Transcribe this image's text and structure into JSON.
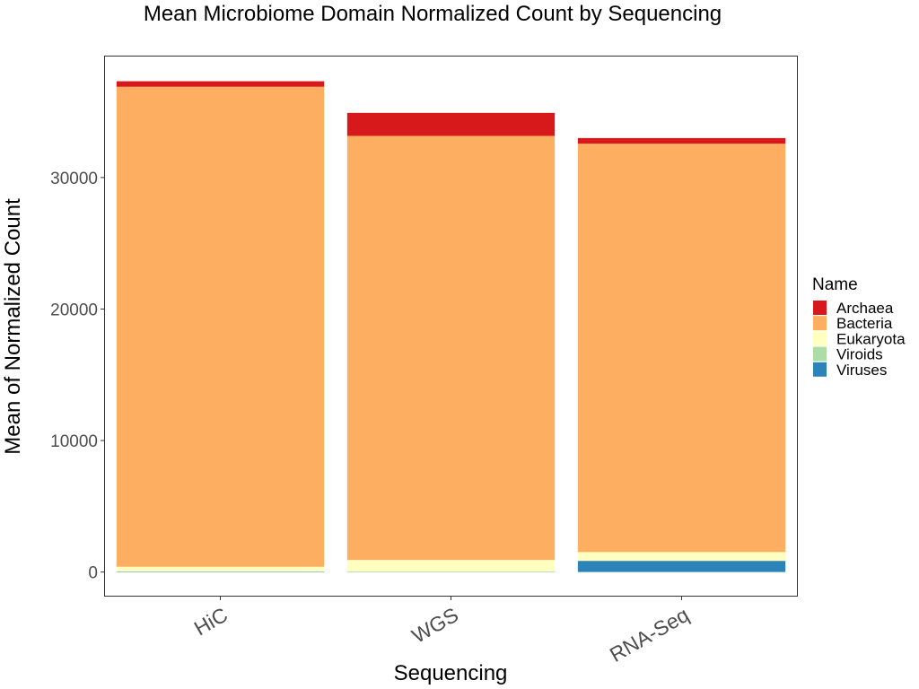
{
  "chart_data": {
    "type": "bar",
    "stacked": true,
    "title": "Mean Microbiome Domain Normalized Count by Sequencing",
    "xlabel": "Sequencing",
    "ylabel": "Mean of Normalized Count",
    "categories": [
      "HiC",
      "WGS",
      "RNA-Seq"
    ],
    "ylim": [
      -1800,
      39200
    ],
    "yticks": [
      0,
      10000,
      20000,
      30000
    ],
    "ytick_labels": [
      "0",
      "10000",
      "20000",
      "30000"
    ],
    "grid": false,
    "legend": {
      "title": "Name",
      "position": "right"
    },
    "series": [
      {
        "name": "Viruses",
        "color": "#2b83ba",
        "values": [
          20,
          40,
          850
        ]
      },
      {
        "name": "Viroids",
        "color": "#abdda4",
        "values": [
          0,
          5,
          0
        ]
      },
      {
        "name": "Eukaryota",
        "color": "#ffffbf",
        "values": [
          380,
          870,
          670
        ]
      },
      {
        "name": "Bacteria",
        "color": "#fdae61",
        "values": [
          36500,
          32250,
          31050
        ]
      },
      {
        "name": "Archaea",
        "color": "#d7191c",
        "values": [
          420,
          1750,
          430
        ]
      }
    ],
    "legend_order": [
      "Archaea",
      "Bacteria",
      "Eukaryota",
      "Viroids",
      "Viruses"
    ]
  }
}
